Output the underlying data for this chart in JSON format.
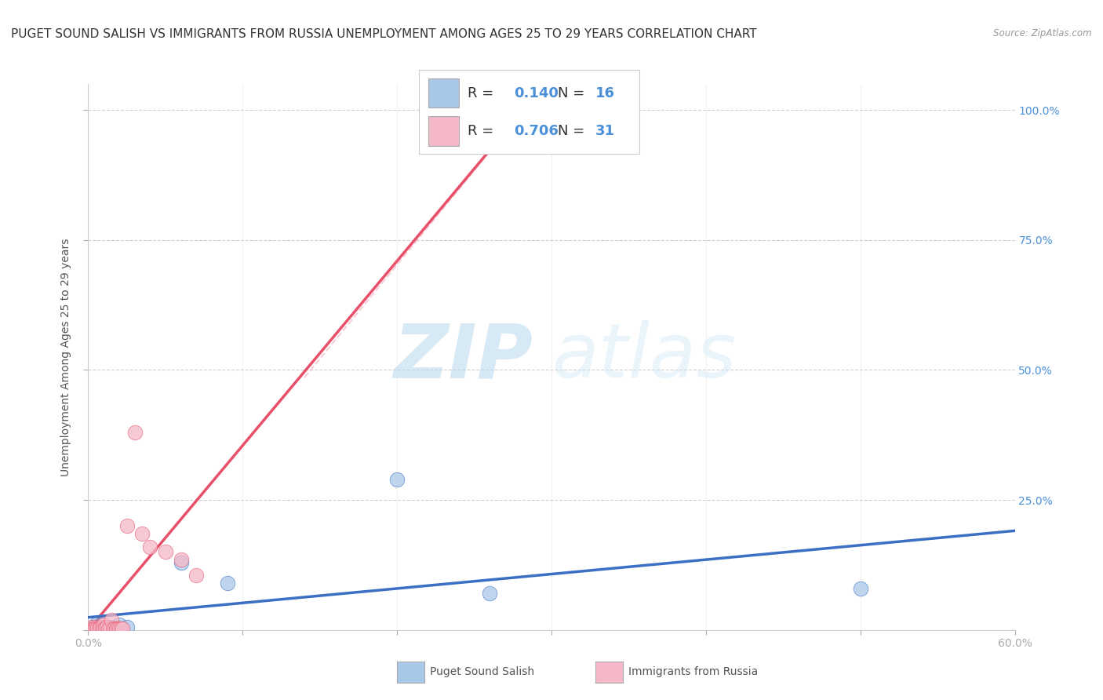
{
  "title": "PUGET SOUND SALISH VS IMMIGRANTS FROM RUSSIA UNEMPLOYMENT AMONG AGES 25 TO 29 YEARS CORRELATION CHART",
  "source": "Source: ZipAtlas.com",
  "ylabel": "Unemployment Among Ages 25 to 29 years",
  "xlim": [
    0.0,
    0.6
  ],
  "ylim": [
    0.0,
    1.05
  ],
  "R_blue": "0.140",
  "N_blue": "16",
  "R_pink": "0.706",
  "N_pink": "31",
  "blue_scatter_x": [
    0.003,
    0.005,
    0.006,
    0.007,
    0.008,
    0.009,
    0.01,
    0.012,
    0.015,
    0.02,
    0.025,
    0.06,
    0.09,
    0.2,
    0.26,
    0.5
  ],
  "blue_scatter_y": [
    0.005,
    0.01,
    0.005,
    0.005,
    0.005,
    0.01,
    0.005,
    0.005,
    0.005,
    0.01,
    0.005,
    0.13,
    0.09,
    0.29,
    0.07,
    0.08
  ],
  "pink_scatter_x": [
    0.002,
    0.003,
    0.004,
    0.005,
    0.005,
    0.006,
    0.007,
    0.008,
    0.009,
    0.01,
    0.01,
    0.011,
    0.012,
    0.013,
    0.014,
    0.015,
    0.016,
    0.017,
    0.018,
    0.019,
    0.02,
    0.021,
    0.022,
    0.025,
    0.03,
    0.035,
    0.04,
    0.05,
    0.06,
    0.07,
    0.27
  ],
  "pink_scatter_y": [
    0.005,
    0.003,
    0.003,
    0.005,
    0.003,
    0.003,
    0.003,
    0.005,
    0.005,
    0.01,
    0.003,
    0.003,
    0.005,
    0.003,
    0.003,
    0.02,
    0.003,
    0.003,
    0.003,
    0.003,
    0.003,
    0.003,
    0.003,
    0.2,
    0.38,
    0.185,
    0.16,
    0.15,
    0.135,
    0.105,
    0.97
  ],
  "blue_color": "#a8c8e8",
  "pink_color": "#f4b8c8",
  "blue_line_color": "#3a6fc4",
  "pink_line_color": "#e8506a",
  "grid_color": "#d0d0d0",
  "background_color": "#ffffff",
  "watermark_zip": "ZIP",
  "watermark_atlas": "atlas",
  "title_fontsize": 11,
  "axis_label_fontsize": 10,
  "tick_fontsize": 10,
  "legend_fontsize": 13
}
